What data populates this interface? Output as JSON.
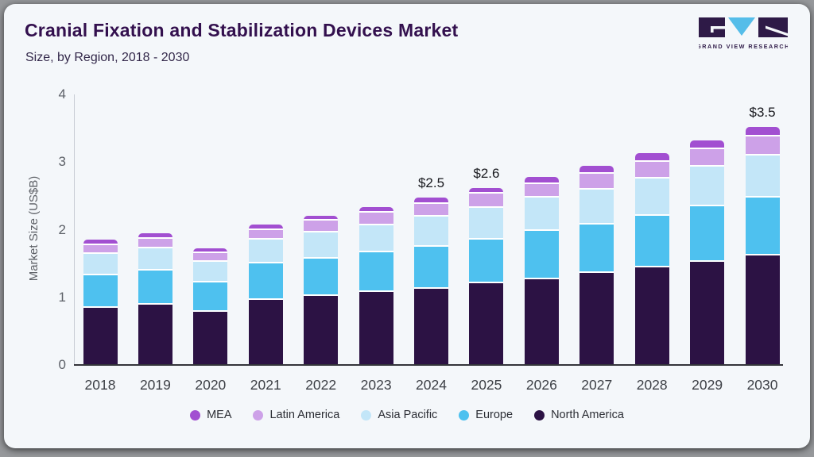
{
  "header": {
    "title": "Cranial Fixation and Stabilization Devices Market",
    "subtitle": "Size, by Region, 2018 - 2030",
    "logo_caption": "GRAND VIEW RESEARCH"
  },
  "colors": {
    "card_background": "#f4f7fa",
    "title_text": "#33104e",
    "brand_dark_purple": "#2e1a47",
    "brand_light_blue": "#55bde9",
    "mea": "#a24fd1",
    "latin_america": "#cda1e8",
    "asia_pacific": "#c3e6f8",
    "europe": "#4ec1ef",
    "north_america": "#2c1244"
  },
  "chart_data": {
    "type": "bar",
    "stacked": true,
    "title": "Cranial Fixation and Stabilization Devices Market Size, by Region, 2018 - 2030",
    "xlabel": "",
    "ylabel": "Market Size (US$B)",
    "ylim": [
      0,
      4
    ],
    "yticks": [
      0,
      1,
      2,
      3,
      4
    ],
    "grid": false,
    "legend_position": "bottom",
    "categories": [
      "2018",
      "2019",
      "2020",
      "2021",
      "2022",
      "2023",
      "2024",
      "2025",
      "2026",
      "2027",
      "2028",
      "2029",
      "2030"
    ],
    "series": [
      {
        "name": "North America",
        "color": "#2c1244",
        "values": [
          0.84,
          0.89,
          0.78,
          0.96,
          1.02,
          1.08,
          1.13,
          1.21,
          1.27,
          1.36,
          1.44,
          1.52,
          1.62
        ]
      },
      {
        "name": "Europe",
        "color": "#4ec1ef",
        "values": [
          0.48,
          0.5,
          0.44,
          0.54,
          0.55,
          0.58,
          0.62,
          0.64,
          0.71,
          0.72,
          0.77,
          0.83,
          0.86
        ]
      },
      {
        "name": "Asia Pacific",
        "color": "#c3e6f8",
        "values": [
          0.32,
          0.33,
          0.3,
          0.35,
          0.39,
          0.41,
          0.44,
          0.47,
          0.49,
          0.51,
          0.55,
          0.58,
          0.62
        ]
      },
      {
        "name": "Latin America",
        "color": "#cda1e8",
        "values": [
          0.13,
          0.14,
          0.13,
          0.15,
          0.17,
          0.18,
          0.19,
          0.21,
          0.21,
          0.24,
          0.24,
          0.26,
          0.28
        ]
      },
      {
        "name": "MEA",
        "color": "#a24fd1",
        "values": [
          0.08,
          0.09,
          0.08,
          0.08,
          0.08,
          0.09,
          0.09,
          0.09,
          0.1,
          0.12,
          0.13,
          0.13,
          0.14
        ]
      }
    ],
    "totals_shown": {
      "2024": "$2.5",
      "2025": "$2.6",
      "2030": "$3.5"
    },
    "legend_order": [
      "MEA",
      "Latin America",
      "Asia Pacific",
      "Europe",
      "North America"
    ]
  }
}
